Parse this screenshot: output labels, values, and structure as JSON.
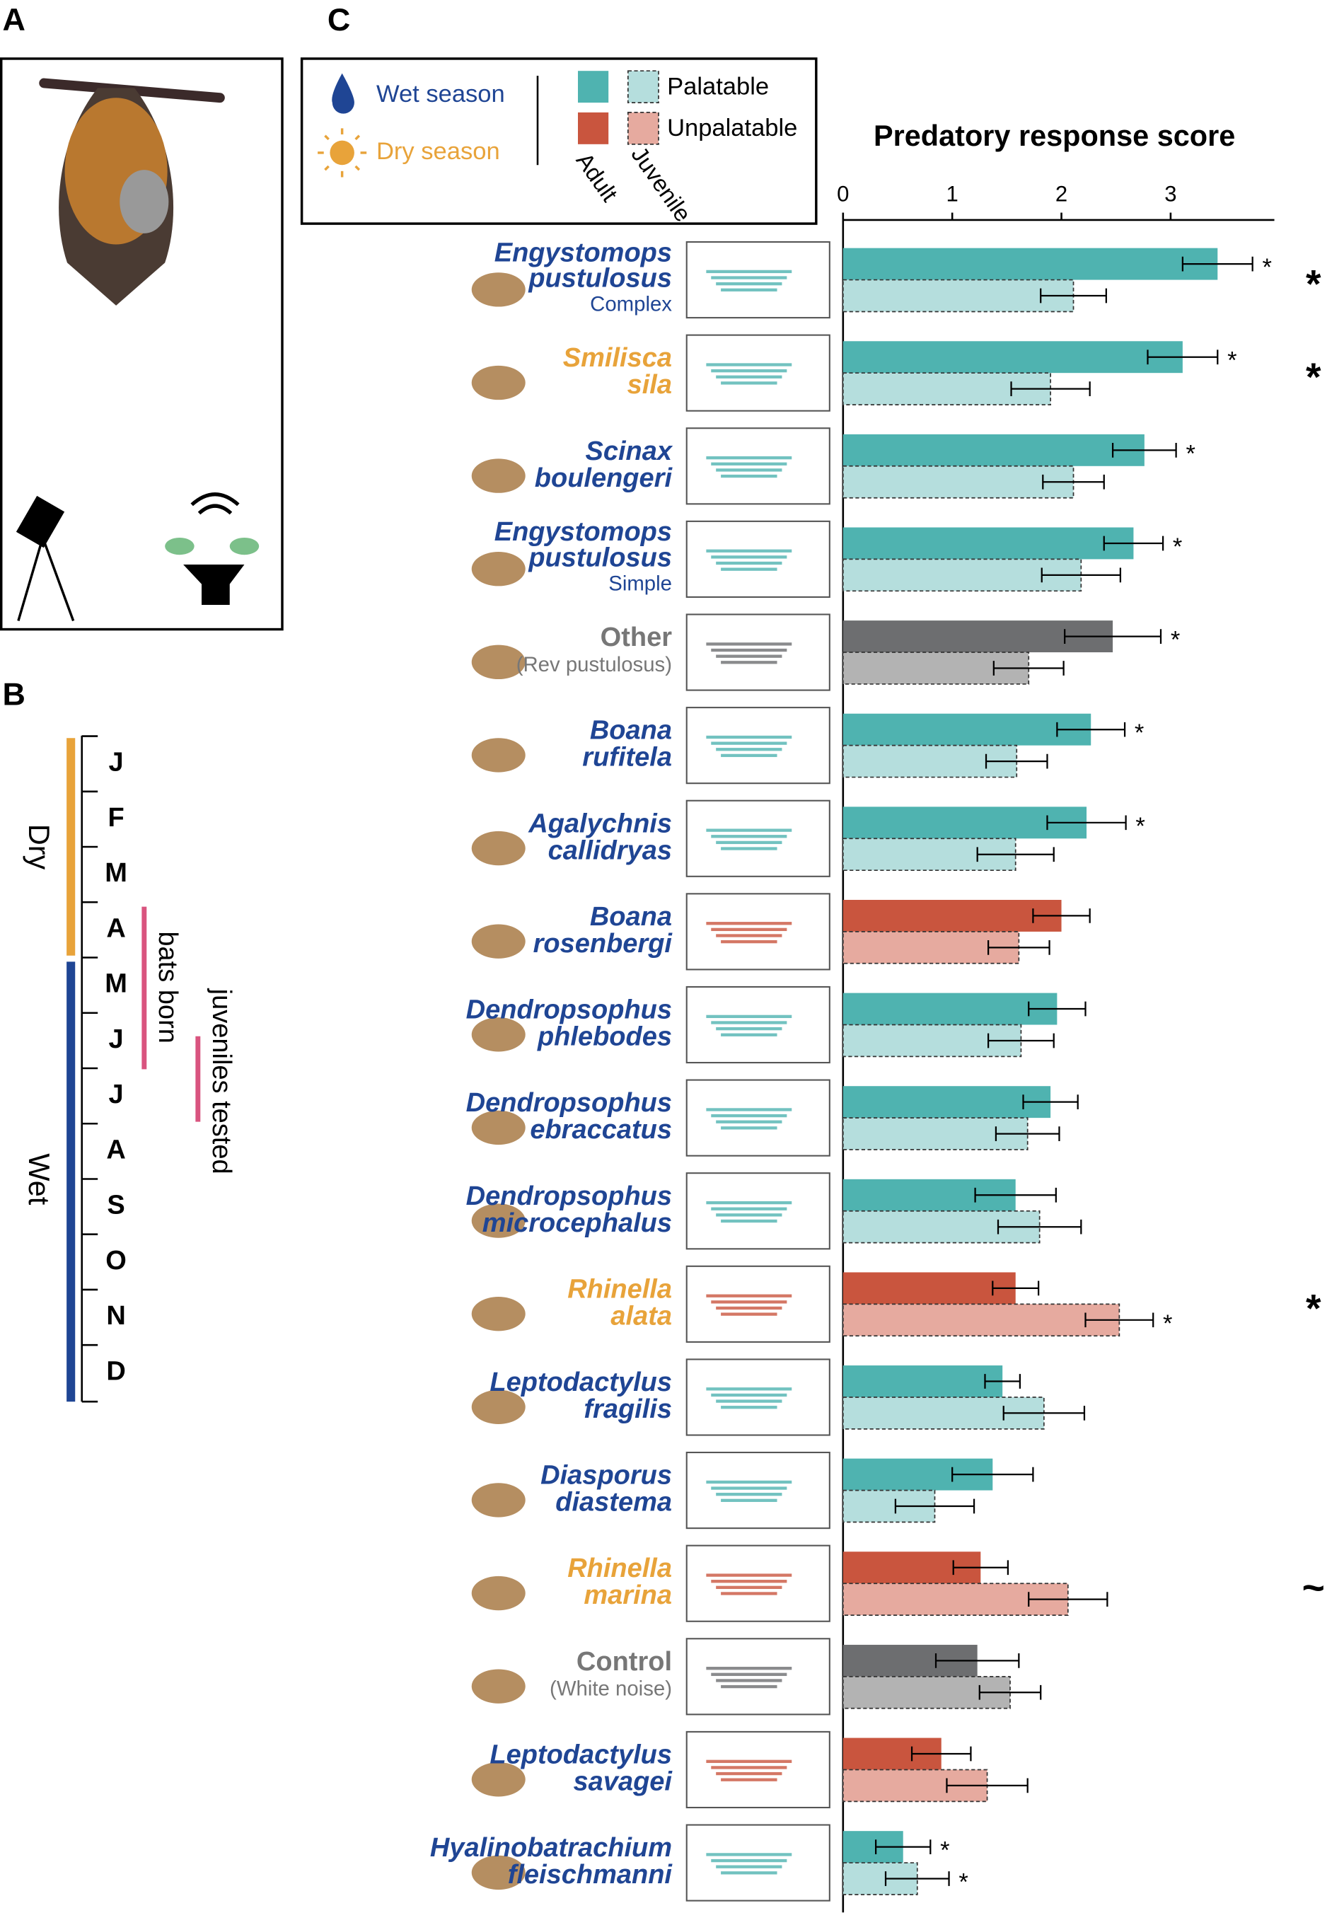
{
  "panel_labels": [
    "A",
    "B",
    "C"
  ],
  "timeline": {
    "months": [
      "J",
      "F",
      "M",
      "A",
      "M",
      "J",
      "J",
      "A",
      "S",
      "O",
      "N",
      "D"
    ],
    "seasons": [
      {
        "label": "Dry",
        "color": "#e8a33a"
      },
      {
        "label": "Wet",
        "color": "#1f4594"
      }
    ],
    "events": [
      {
        "label": "bats born",
        "color": "#d9547f"
      },
      {
        "label": "juveniles tested",
        "color": "#d9547f"
      }
    ]
  },
  "legend": {
    "seasons": [
      {
        "label": "Wet season",
        "color": "#1f4594"
      },
      {
        "label": "Dry season",
        "color": "#e8a33a"
      }
    ],
    "kinds": [
      {
        "label": "Palatable",
        "colors": [
          "#4fb3b0",
          "#b5dedd"
        ]
      },
      {
        "label": "Unpalatable",
        "colors": [
          "#c9553e",
          "#e6aa9f"
        ]
      }
    ],
    "ages": [
      "Adult",
      "Juvenile"
    ]
  },
  "chart_data": {
    "type": "hbar",
    "title": "Predatory response score",
    "categories": [
      [
        "Engystomops",
        "pustulosus",
        "Complex"
      ],
      [
        "Smilisca",
        "sila"
      ],
      [
        "Scinax",
        "boulengeri"
      ],
      [
        "Engystomops",
        "pustulosus",
        "Simple"
      ],
      [
        "Other",
        "(Rev pustulosus)"
      ],
      [
        "Boana",
        "rufitela"
      ],
      [
        "Agalychnis",
        "callidryas"
      ],
      [
        "Boana",
        "rosenbergi"
      ],
      [
        "Dendropsophus",
        "phlebodes"
      ],
      [
        "Dendropsophus",
        "ebraccatus"
      ],
      [
        "Dendropsophus",
        "microcephalus"
      ],
      [
        "Rhinella",
        "alata"
      ],
      [
        "Leptodactylus",
        "fragilis"
      ],
      [
        "Diasporus",
        "diastema"
      ],
      [
        "Rhinella",
        "marina"
      ],
      [
        "Control",
        "(White noise)"
      ],
      [
        "Leptodactylus",
        "savagei"
      ],
      [
        "Hyalinobatrachium",
        "fleischmanni"
      ]
    ],
    "label_colors": [
      "#1f4594",
      "#e8a33a",
      "#1f4594",
      "#1f4594",
      "#777777",
      "#1f4594",
      "#1f4594",
      "#1f4594",
      "#1f4594",
      "#1f4594",
      "#1f4594",
      "#e8a33a",
      "#1f4594",
      "#1f4594",
      "#e8a33a",
      "#777777",
      "#1f4594",
      "#1f4594"
    ],
    "series": [
      {
        "name": "Adult",
        "values": [
          3.43,
          3.11,
          2.76,
          2.66,
          2.47,
          2.27,
          2.23,
          2.0,
          1.96,
          1.9,
          1.58,
          1.58,
          1.46,
          1.37,
          1.26,
          1.23,
          0.9,
          0.55
        ],
        "errors": [
          0.32,
          0.32,
          0.29,
          0.27,
          0.44,
          0.31,
          0.36,
          0.26,
          0.26,
          0.25,
          0.37,
          0.21,
          0.16,
          0.37,
          0.25,
          0.38,
          0.27,
          0.25
        ],
        "colors": [
          "#4fb3b0",
          "#4fb3b0",
          "#4fb3b0",
          "#4fb3b0",
          "#6d6e70",
          "#4fb3b0",
          "#4fb3b0",
          "#c9553e",
          "#4fb3b0",
          "#4fb3b0",
          "#4fb3b0",
          "#c9553e",
          "#4fb3b0",
          "#4fb3b0",
          "#c9553e",
          "#6d6e70",
          "#c9553e",
          "#4fb3b0"
        ],
        "markers": [
          "*",
          "*",
          "*",
          "*",
          "*",
          "*",
          "*",
          null,
          null,
          null,
          null,
          null,
          null,
          null,
          null,
          null,
          null,
          "*"
        ]
      },
      {
        "name": "Juvenile",
        "values": [
          2.11,
          1.9,
          2.11,
          2.18,
          1.7,
          1.59,
          1.58,
          1.61,
          1.63,
          1.69,
          1.8,
          2.53,
          1.84,
          0.84,
          2.06,
          1.53,
          1.32,
          0.68
        ],
        "errors": [
          0.3,
          0.36,
          0.28,
          0.36,
          0.32,
          0.28,
          0.35,
          0.28,
          0.3,
          0.29,
          0.38,
          0.31,
          0.37,
          0.36,
          0.36,
          0.28,
          0.37,
          0.29
        ],
        "colors": [
          "#b5dedd",
          "#b5dedd",
          "#b5dedd",
          "#b5dedd",
          "#b3b3b3",
          "#b5dedd",
          "#b5dedd",
          "#e6aa9f",
          "#b5dedd",
          "#b5dedd",
          "#b5dedd",
          "#e6aa9f",
          "#b5dedd",
          "#b5dedd",
          "#e6aa9f",
          "#b3b3b3",
          "#e6aa9f",
          "#b5dedd"
        ],
        "markers": [
          null,
          null,
          null,
          null,
          null,
          null,
          null,
          null,
          null,
          null,
          null,
          "*",
          null,
          null,
          null,
          null,
          null,
          "*"
        ]
      }
    ],
    "row_markers": [
      "*",
      "*",
      null,
      null,
      null,
      null,
      null,
      null,
      null,
      null,
      null,
      "*",
      null,
      null,
      "~",
      null,
      null,
      null
    ],
    "xlim": [
      0,
      3.95
    ],
    "xticks": [
      0,
      1,
      2,
      3
    ]
  }
}
